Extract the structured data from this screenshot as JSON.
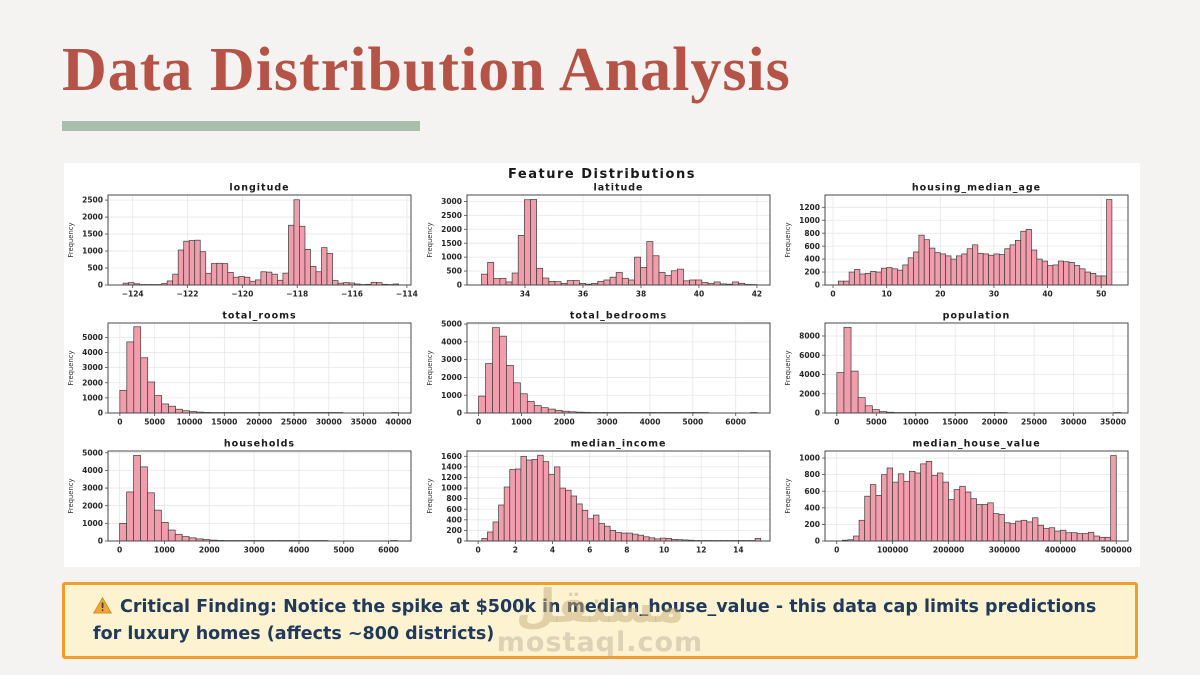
{
  "slide": {
    "title": "Data Distribution Analysis",
    "accent_color": "#b65347",
    "underline_color": "#a9bfac",
    "background_color": "#f4f3f1"
  },
  "figure": {
    "suptitle": "Feature Distributions",
    "bar_fill": "#f19dac",
    "bar_edge": "#3c3c3c",
    "grid_color": "#e7e7e7",
    "spine_color": "#4a4a4a",
    "grid": true
  },
  "chart_data": [
    {
      "type": "bar",
      "title": "longitude",
      "ylabel": "Frequency",
      "xlim": [
        -124.9,
        -113.85
      ],
      "ylim": [
        0,
        2650
      ],
      "bars_start": -124.35,
      "bars_end": -114.3,
      "values": [
        55,
        70,
        35,
        10,
        8,
        15,
        10,
        45,
        120,
        320,
        1030,
        1290,
        1310,
        1320,
        980,
        345,
        630,
        640,
        630,
        370,
        230,
        250,
        230,
        110,
        150,
        390,
        380,
        320,
        140,
        350,
        1760,
        2510,
        1730,
        1050,
        550,
        390,
        1100,
        930,
        130,
        55,
        70,
        60,
        30,
        10,
        20,
        80,
        70,
        20,
        10,
        30
      ],
      "x_ticks": [
        {
          "v": -124,
          "l": "−124"
        },
        {
          "v": -122,
          "l": "−122"
        },
        {
          "v": -120,
          "l": "−120"
        },
        {
          "v": -118,
          "l": "−118"
        },
        {
          "v": -116,
          "l": "−116"
        },
        {
          "v": -114,
          "l": "−114"
        }
      ],
      "y_ticks": [
        0,
        500,
        1000,
        1500,
        2000,
        2500
      ]
    },
    {
      "type": "bar",
      "title": "latitude",
      "ylabel": "Frequency",
      "xlim": [
        32.0,
        42.45
      ],
      "ylim": [
        0,
        3230
      ],
      "bars_start": 32.5,
      "bars_end": 42.0,
      "values": [
        390,
        810,
        230,
        240,
        110,
        430,
        1780,
        3060,
        3070,
        600,
        250,
        130,
        120,
        60,
        160,
        160,
        60,
        30,
        60,
        130,
        180,
        280,
        450,
        240,
        180,
        1000,
        630,
        1560,
        1050,
        450,
        340,
        510,
        570,
        150,
        180,
        180,
        90,
        50,
        110,
        40,
        30,
        110,
        60,
        20,
        10
      ],
      "x_ticks": [
        {
          "v": 34,
          "l": "34"
        },
        {
          "v": 36,
          "l": "36"
        },
        {
          "v": 38,
          "l": "38"
        },
        {
          "v": 40,
          "l": "40"
        },
        {
          "v": 42,
          "l": "42"
        }
      ],
      "y_ticks": [
        0,
        500,
        1000,
        1500,
        2000,
        2500,
        3000
      ]
    },
    {
      "type": "bar",
      "title": "housing_median_age",
      "ylabel": "Frequency",
      "xlim": [
        -1.5,
        55
      ],
      "ylim": [
        0,
        1390
      ],
      "bars_start": 1,
      "bars_end": 52,
      "values": [
        60,
        60,
        200,
        240,
        170,
        180,
        210,
        200,
        260,
        270,
        250,
        230,
        310,
        420,
        510,
        770,
        700,
        570,
        500,
        480,
        450,
        400,
        450,
        480,
        560,
        620,
        490,
        480,
        460,
        480,
        470,
        560,
        620,
        690,
        830,
        860,
        540,
        400,
        370,
        300,
        310,
        370,
        360,
        350,
        300,
        250,
        200,
        180,
        140,
        140,
        1320
      ],
      "x_ticks": [
        {
          "v": 0,
          "l": "0"
        },
        {
          "v": 10,
          "l": "10"
        },
        {
          "v": 20,
          "l": "20"
        },
        {
          "v": 30,
          "l": "30"
        },
        {
          "v": 40,
          "l": "40"
        },
        {
          "v": 50,
          "l": "50"
        }
      ],
      "y_ticks": [
        0,
        200,
        400,
        600,
        800,
        1000,
        1200
      ]
    },
    {
      "type": "bar",
      "title": "total_rooms",
      "ylabel": "Frequency",
      "xlim": [
        -1700,
        41800
      ],
      "ylim": [
        0,
        5950
      ],
      "bars_start": 0,
      "bars_end": 40000,
      "values": [
        1500,
        4700,
        5700,
        3650,
        2050,
        1150,
        600,
        450,
        250,
        150,
        100,
        60,
        40,
        30,
        25,
        20,
        15,
        12,
        10,
        8,
        6,
        5,
        4,
        3,
        3,
        2,
        2,
        2,
        1,
        1,
        1,
        1,
        0,
        0,
        0,
        0,
        0,
        0,
        0,
        1
      ],
      "x_ticks": [
        {
          "v": 0,
          "l": "0"
        },
        {
          "v": 5000,
          "l": "5000"
        },
        {
          "v": 10000,
          "l": "10000"
        },
        {
          "v": 15000,
          "l": "15000"
        },
        {
          "v": 20000,
          "l": "20000"
        },
        {
          "v": 25000,
          "l": "25000"
        },
        {
          "v": 30000,
          "l": "30000"
        },
        {
          "v": 35000,
          "l": "35000"
        },
        {
          "v": 40000,
          "l": "40000"
        }
      ],
      "y_ticks": [
        0,
        1000,
        2000,
        3000,
        4000,
        5000
      ]
    },
    {
      "type": "bar",
      "title": "total_bedrooms",
      "ylabel": "Frequency",
      "xlim": [
        -270,
        6800
      ],
      "ylim": [
        0,
        5060
      ],
      "bars_start": 0,
      "bars_end": 6500,
      "values": [
        950,
        2780,
        4800,
        4320,
        2680,
        1700,
        1080,
        650,
        420,
        300,
        220,
        150,
        100,
        70,
        50,
        40,
        30,
        22,
        15,
        12,
        10,
        8,
        6,
        5,
        4,
        3,
        3,
        2,
        2,
        1,
        1,
        1,
        1,
        0,
        0,
        0,
        0,
        0,
        0,
        1
      ],
      "x_ticks": [
        {
          "v": 0,
          "l": "0"
        },
        {
          "v": 1000,
          "l": "1000"
        },
        {
          "v": 2000,
          "l": "2000"
        },
        {
          "v": 3000,
          "l": "3000"
        },
        {
          "v": 4000,
          "l": "4000"
        },
        {
          "v": 5000,
          "l": "5000"
        },
        {
          "v": 6000,
          "l": "6000"
        }
      ],
      "y_ticks": [
        0,
        1000,
        2000,
        3000,
        4000,
        5000
      ]
    },
    {
      "type": "bar",
      "title": "population",
      "ylabel": "Frequency",
      "xlim": [
        -1500,
        36900
      ],
      "ylim": [
        0,
        9350
      ],
      "bars_start": 0,
      "bars_end": 36000,
      "values": [
        4200,
        8900,
        4350,
        1600,
        750,
        350,
        150,
        80,
        50,
        30,
        20,
        15,
        10,
        8,
        6,
        5,
        4,
        3,
        2,
        2,
        1,
        1,
        1,
        1,
        0,
        0,
        0,
        0,
        0,
        0,
        0,
        0,
        0,
        0,
        0,
        0,
        0,
        0,
        0,
        1
      ],
      "x_ticks": [
        {
          "v": 0,
          "l": "0"
        },
        {
          "v": 5000,
          "l": "5000"
        },
        {
          "v": 10000,
          "l": "10000"
        },
        {
          "v": 15000,
          "l": "15000"
        },
        {
          "v": 20000,
          "l": "20000"
        },
        {
          "v": 25000,
          "l": "25000"
        },
        {
          "v": 30000,
          "l": "30000"
        },
        {
          "v": 35000,
          "l": "35000"
        }
      ],
      "y_ticks": [
        0,
        2000,
        4000,
        6000,
        8000
      ]
    },
    {
      "type": "bar",
      "title": "households",
      "ylabel": "Frequency",
      "xlim": [
        -260,
        6500
      ],
      "ylim": [
        0,
        5100
      ],
      "bars_start": 0,
      "bars_end": 6200,
      "values": [
        1000,
        2780,
        4850,
        4200,
        2730,
        1750,
        1050,
        620,
        380,
        250,
        180,
        120,
        80,
        50,
        35,
        25,
        18,
        12,
        10,
        8,
        6,
        5,
        4,
        3,
        2,
        2,
        1,
        1,
        1,
        1,
        0,
        0,
        0,
        0,
        0,
        0,
        0,
        0,
        0,
        1
      ],
      "x_ticks": [
        {
          "v": 0,
          "l": "0"
        },
        {
          "v": 1000,
          "l": "1000"
        },
        {
          "v": 2000,
          "l": "2000"
        },
        {
          "v": 3000,
          "l": "3000"
        },
        {
          "v": 4000,
          "l": "4000"
        },
        {
          "v": 5000,
          "l": "5000"
        },
        {
          "v": 6000,
          "l": "6000"
        }
      ],
      "y_ticks": [
        0,
        1000,
        2000,
        3000,
        4000,
        5000
      ]
    },
    {
      "type": "bar",
      "title": "median_income",
      "ylabel": "Frequency",
      "xlim": [
        -0.6,
        15.7
      ],
      "ylim": [
        0,
        1700
      ],
      "bars_start": 0.2,
      "bars_end": 15.2,
      "values": [
        50,
        170,
        360,
        680,
        1020,
        1350,
        1360,
        1600,
        1530,
        1540,
        1620,
        1500,
        1260,
        1400,
        1000,
        960,
        850,
        700,
        580,
        420,
        490,
        330,
        280,
        200,
        160,
        150,
        150,
        130,
        110,
        80,
        60,
        40,
        55,
        50,
        30,
        25,
        20,
        15,
        10,
        8,
        5,
        5,
        5,
        3,
        3,
        2,
        2,
        2,
        1,
        50
      ],
      "x_ticks": [
        {
          "v": 0,
          "l": "0"
        },
        {
          "v": 2,
          "l": "2"
        },
        {
          "v": 4,
          "l": "4"
        },
        {
          "v": 6,
          "l": "6"
        },
        {
          "v": 8,
          "l": "8"
        },
        {
          "v": 10,
          "l": "10"
        },
        {
          "v": 12,
          "l": "12"
        },
        {
          "v": 14,
          "l": "14"
        }
      ],
      "y_ticks": [
        0,
        200,
        400,
        600,
        800,
        1000,
        1200,
        1400,
        1600
      ]
    },
    {
      "type": "bar",
      "title": "median_house_value",
      "ylabel": "Frequency",
      "xlim": [
        -21000,
        521000
      ],
      "ylim": [
        0,
        1085
      ],
      "bars_start": 10000,
      "bars_end": 500000,
      "values": [
        10,
        15,
        60,
        250,
        540,
        680,
        550,
        800,
        880,
        710,
        810,
        720,
        840,
        820,
        930,
        960,
        790,
        820,
        710,
        500,
        620,
        660,
        590,
        510,
        440,
        440,
        460,
        330,
        320,
        220,
        210,
        240,
        250,
        230,
        280,
        190,
        150,
        160,
        120,
        130,
        100,
        100,
        90,
        90,
        105,
        60,
        45,
        45,
        1030
      ],
      "x_ticks": [
        {
          "v": 0,
          "l": "0"
        },
        {
          "v": 100000,
          "l": "100000"
        },
        {
          "v": 200000,
          "l": "200000"
        },
        {
          "v": 300000,
          "l": "300000"
        },
        {
          "v": 400000,
          "l": "400000"
        },
        {
          "v": 500000,
          "l": "500000"
        }
      ],
      "y_ticks": [
        0,
        200,
        400,
        600,
        800,
        1000
      ]
    }
  ],
  "callout": {
    "icon": "warning-icon",
    "text": "Critical Finding: Notice the spike at $500k in median_house_value - this data cap limits predictions for luxury homes (affects ~800 districts)",
    "background": "#fdf3d1",
    "border_color": "#f09d2d",
    "text_color": "#213a5c"
  },
  "watermark": {
    "line1": "مستقل",
    "line2": "mostaql.com"
  }
}
